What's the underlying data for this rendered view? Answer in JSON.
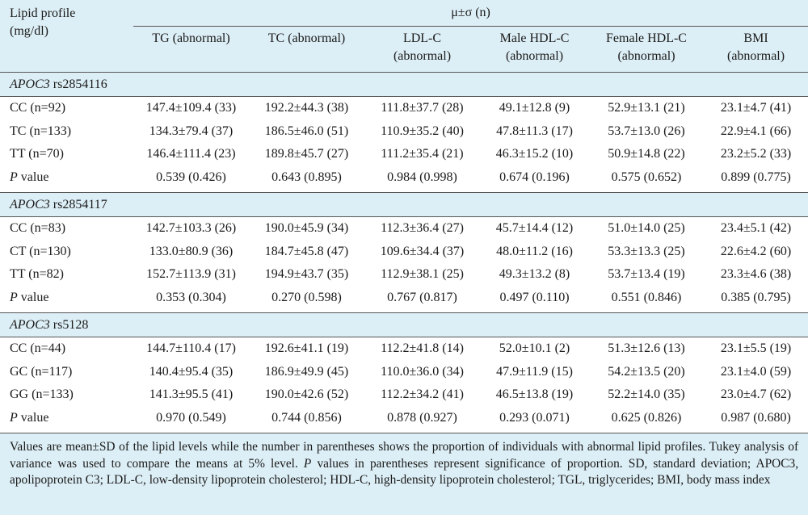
{
  "header": {
    "stub_label_line1": "Lipid profile",
    "stub_label_line2": "(mg/dl)",
    "span_label": "μ±σ (n)",
    "columns": [
      {
        "line1": "TG (abnormal)",
        "line2": ""
      },
      {
        "line1": "TC (abnormal)",
        "line2": ""
      },
      {
        "line1": "LDL-C",
        "line2": "(abnormal)"
      },
      {
        "line1": "Male HDL-C",
        "line2": "(abnormal)"
      },
      {
        "line1": "Female HDL-C",
        "line2": "(abnormal)"
      },
      {
        "line1": "BMI",
        "line2": "(abnormal)"
      }
    ]
  },
  "sections": [
    {
      "gene": "APOC3",
      "snp": " rs2854116",
      "rows": [
        {
          "label": "CC (n=92)",
          "values": [
            "147.4±109.4 (33)",
            "192.2±44.3 (38)",
            "111.8±37.7 (28)",
            "49.1±12.8 (9)",
            "52.9±13.1 (21)",
            "23.1±4.7 (41)"
          ]
        },
        {
          "label": "TC (n=133)",
          "values": [
            "134.3±79.4 (37)",
            "186.5±46.0 (51)",
            "110.9±35.2 (40)",
            "47.8±11.3 (17)",
            "53.7±13.0 (26)",
            "22.9±4.1 (66)"
          ]
        },
        {
          "label": "TT (n=70)",
          "values": [
            "146.4±111.4 (23)",
            "189.8±45.7 (27)",
            "111.2±35.4 (21)",
            "46.3±15.2 (10)",
            "50.9±14.8 (22)",
            "23.2±5.2 (33)"
          ]
        }
      ],
      "pvalue": {
        "label_italic": "P",
        "label_rest": " value",
        "values": [
          "0.539 (0.426)",
          "0.643 (0.895)",
          "0.984 (0.998)",
          "0.674 (0.196)",
          "0.575 (0.652)",
          "0.899 (0.775)"
        ]
      }
    },
    {
      "gene": "APOC3",
      "snp": " rs2854117",
      "rows": [
        {
          "label": "CC (n=83)",
          "values": [
            "142.7±103.3 (26)",
            "190.0±45.9 (34)",
            "112.3±36.4 (27)",
            "45.7±14.4 (12)",
            "51.0±14.0 (25)",
            "23.4±5.1 (42)"
          ]
        },
        {
          "label": "CT (n=130)",
          "values": [
            "133.0±80.9 (36)",
            "184.7±45.8 (47)",
            "109.6±34.4 (37)",
            "48.0±11.2 (16)",
            "53.3±13.3 (25)",
            "22.6±4.2 (60)"
          ]
        },
        {
          "label": "TT (n=82)",
          "values": [
            "152.7±113.9 (31)",
            "194.9±43.7 (35)",
            "112.9±38.1 (25)",
            "49.3±13.2 (8)",
            "53.7±13.4 (19)",
            "23.3±4.6 (38)"
          ]
        }
      ],
      "pvalue": {
        "label_italic": "P",
        "label_rest": " value",
        "values": [
          "0.353 (0.304)",
          "0.270 (0.598)",
          "0.767 (0.817)",
          "0.497 (0.110)",
          "0.551 (0.846)",
          "0.385 (0.795)"
        ]
      }
    },
    {
      "gene": "APOC3",
      "snp": " rs5128",
      "rows": [
        {
          "label": "CC (n=44)",
          "values": [
            "144.7±110.4 (17)",
            "192.6±41.1 (19)",
            "112.2±41.8 (14)",
            "52.0±10.1 (2)",
            "51.3±12.6 (13)",
            "23.1±5.5 (19)"
          ]
        },
        {
          "label": "GC (n=117)",
          "values": [
            "140.4±95.4 (35)",
            "186.9±49.9 (45)",
            "110.0±36.0 (34)",
            "47.9±11.9 (15)",
            "54.2±13.5 (20)",
            "23.1±4.0 (59)"
          ]
        },
        {
          "label": "GG (n=133)",
          "values": [
            "141.3±95.5 (41)",
            "190.0±42.6 (52)",
            "112.2±34.2 (41)",
            "46.5±13.8 (19)",
            "52.2±14.0 (35)",
            "23.0±4.7 (62)"
          ]
        }
      ],
      "pvalue": {
        "label_italic": "P",
        "label_rest": " value",
        "values": [
          "0.970 (0.549)",
          "0.744 (0.856)",
          "0.878 (0.927)",
          "0.293 (0.071)",
          "0.625 (0.826)",
          "0.987 (0.680)"
        ]
      }
    }
  ],
  "footnote": {
    "part1": "Values are mean±SD of the lipid levels while the number in parentheses shows the proportion of individuals with abnormal lipid profiles. Tukey analysis of variance was used to compare the means at 5% level. ",
    "p_italic": "P",
    "part2": " values in parentheses represent significance of proportion. SD, standard deviation; APOC3, apolipoprotein C3; LDL-C, low-density lipoprotein cholesterol; HDL-C, high-density lipoprotein cholesterol; TGL, triglycerides; BMI, body mass index"
  },
  "colors": {
    "band": "#ddeff6",
    "rule": "#555555",
    "text": "#1a1a1a"
  }
}
